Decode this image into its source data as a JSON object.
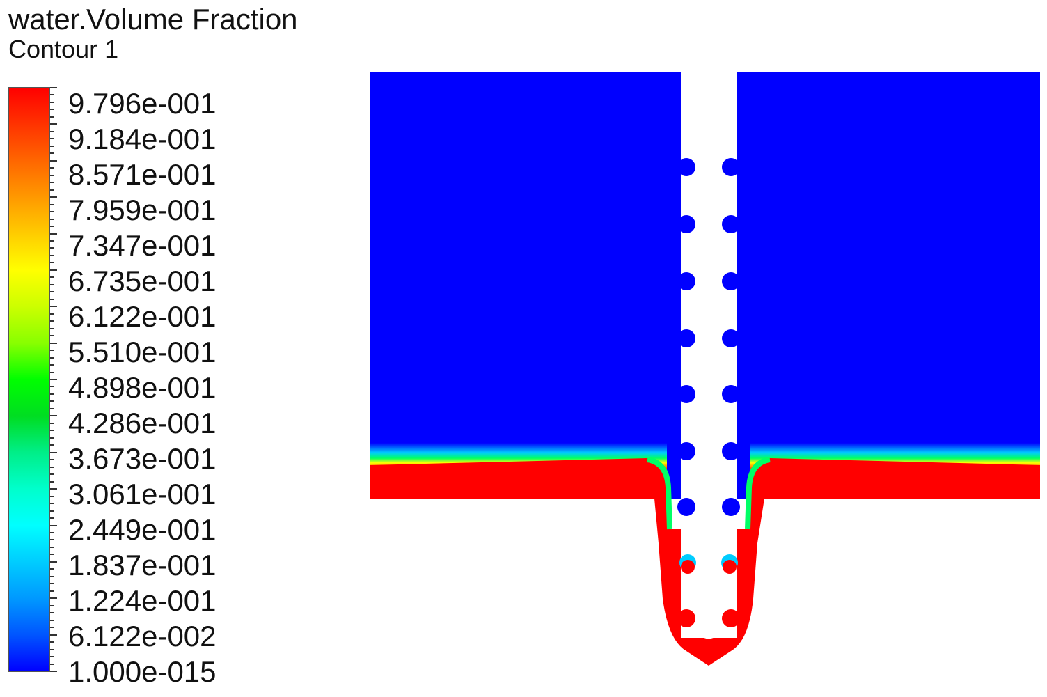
{
  "title": {
    "line1": "water.Volume Fraction",
    "line2": "Contour 1"
  },
  "legend": {
    "labels": [
      "9.796e-001",
      "9.184e-001",
      "8.571e-001",
      "7.959e-001",
      "7.347e-001",
      "6.735e-001",
      "6.122e-001",
      "5.510e-001",
      "4.898e-001",
      "4.286e-001",
      "3.673e-001",
      "3.061e-001",
      "2.449e-001",
      "1.837e-001",
      "1.224e-001",
      "6.122e-002",
      "1.000e-015"
    ],
    "colors_top_to_bottom": [
      "#ff0000",
      "#ff3300",
      "#ff6600",
      "#ff9900",
      "#ffcc00",
      "#ffff00",
      "#ccff00",
      "#88ff00",
      "#00ff00",
      "#00dd22",
      "#00ee88",
      "#00ffcc",
      "#00ffff",
      "#00ccff",
      "#0099ff",
      "#0055ff",
      "#0000ff"
    ]
  },
  "colors": {
    "air": "#0000ff",
    "water": "#ff0000",
    "solid": "#ffffff"
  }
}
